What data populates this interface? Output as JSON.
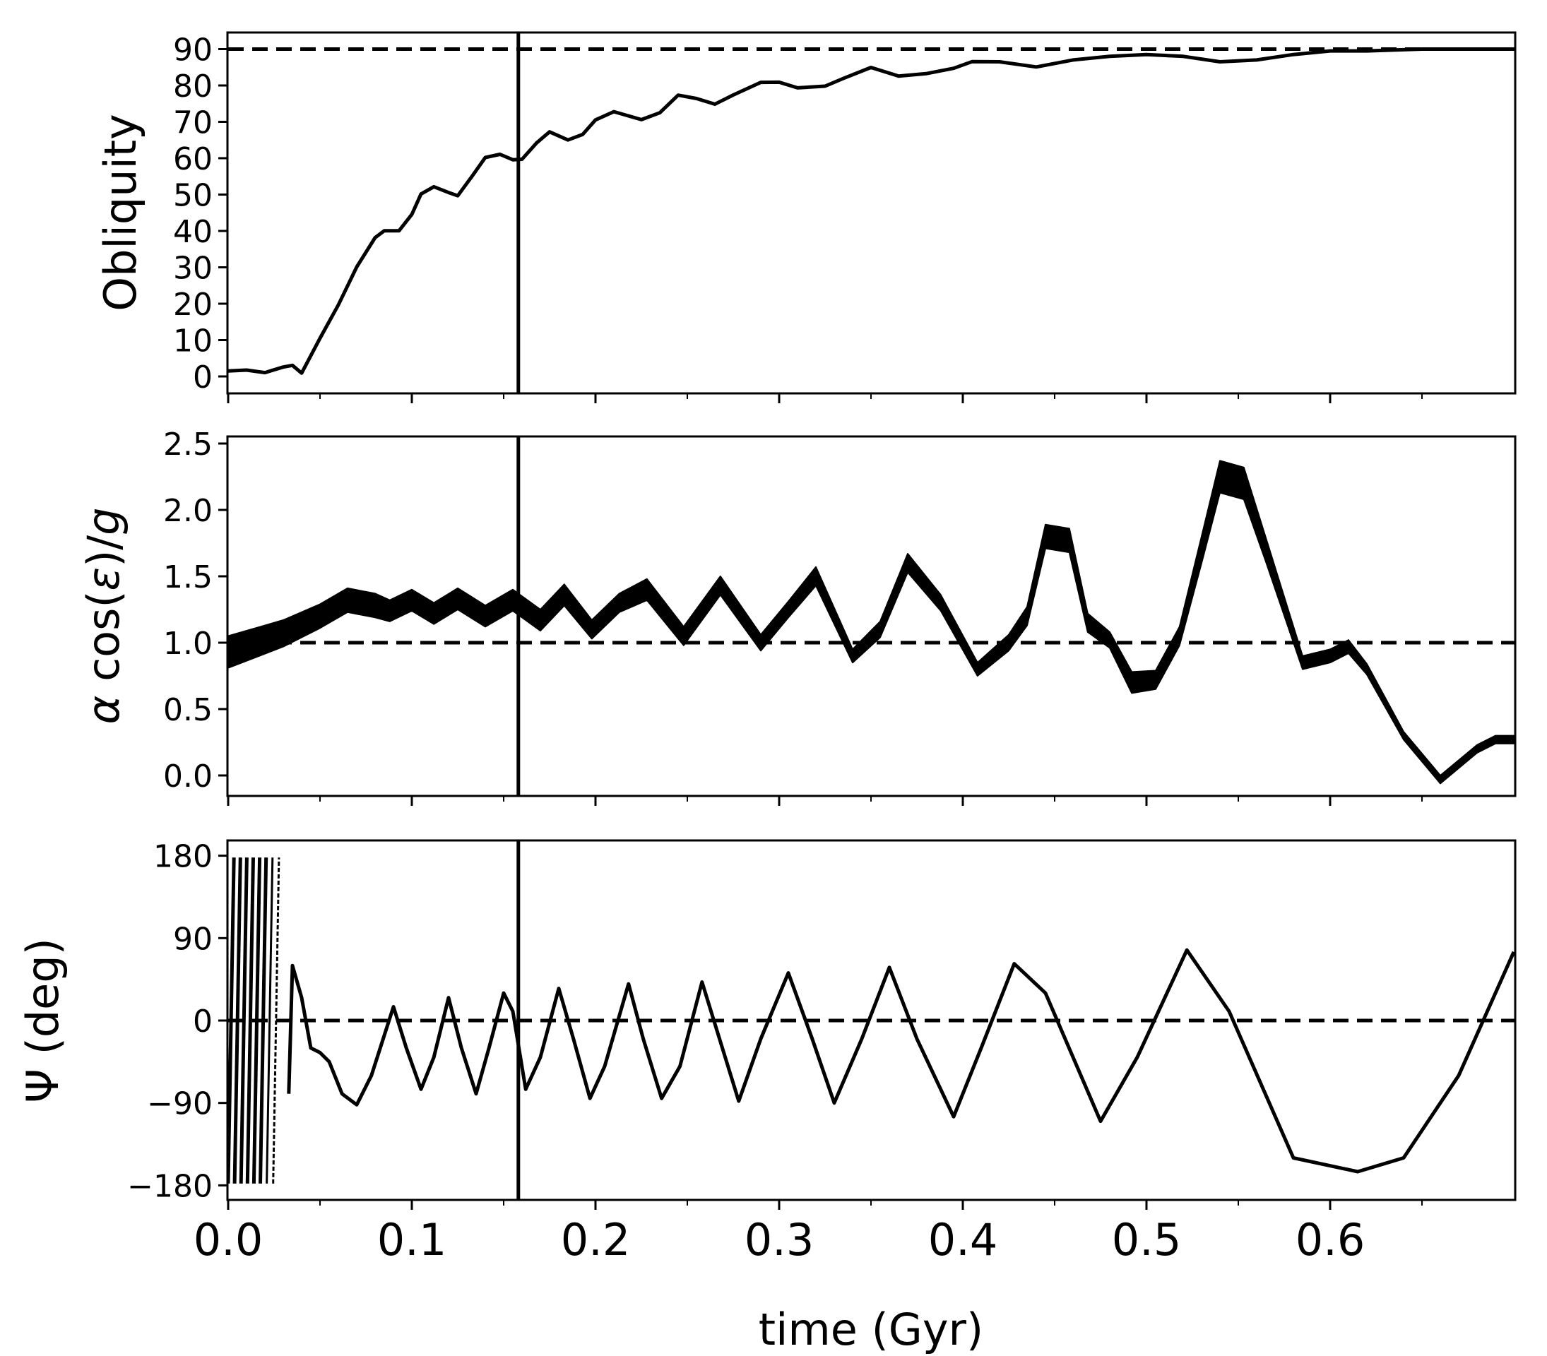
{
  "figure": {
    "xlabel": "time (Gyr)",
    "xticks": [
      "0.0",
      "0.1",
      "0.2",
      "0.3",
      "0.4",
      "0.5",
      "0.6"
    ],
    "vertical_marker_time": 0.158
  },
  "panels": [
    {
      "ylabel": "Obliquity",
      "yticks": [
        "0",
        "10",
        "20",
        "30",
        "40",
        "50",
        "60",
        "70",
        "80",
        "90"
      ],
      "reference_line": 90
    },
    {
      "ylabel_prefix": "α",
      "ylabel_mid": " cos(",
      "ylabel_eps": "ε",
      "ylabel_close": ")/",
      "ylabel_g": "g",
      "yticks": [
        "0.0",
        "0.5",
        "1.0",
        "1.5",
        "2.0",
        "2.5"
      ],
      "reference_line": 1.0
    },
    {
      "ylabel": "Ψ (deg)",
      "yticks": [
        "−180",
        "−90",
        "0",
        "90",
        "180"
      ],
      "reference_line": 0
    }
  ],
  "chart_data": [
    {
      "type": "line",
      "title": "",
      "xlabel": "",
      "ylabel": "Obliquity",
      "xlim": [
        0.0,
        0.7
      ],
      "ylim": [
        -4,
        94
      ],
      "grid": false,
      "reference_lines": [
        {
          "axis": "y",
          "value": 90,
          "style": "dashed"
        },
        {
          "axis": "x",
          "value": 0.158,
          "style": "solid"
        }
      ],
      "x": [
        0.0,
        0.01,
        0.02,
        0.03,
        0.035,
        0.04,
        0.05,
        0.06,
        0.07,
        0.08,
        0.085,
        0.093,
        0.1,
        0.105,
        0.112,
        0.12,
        0.125,
        0.133,
        0.14,
        0.148,
        0.155,
        0.16,
        0.168,
        0.175,
        0.185,
        0.193,
        0.2,
        0.21,
        0.225,
        0.235,
        0.245,
        0.255,
        0.265,
        0.275,
        0.29,
        0.3,
        0.31,
        0.325,
        0.335,
        0.35,
        0.365,
        0.38,
        0.395,
        0.405,
        0.42,
        0.44,
        0.46,
        0.48,
        0.5,
        0.52,
        0.54,
        0.56,
        0.58,
        0.6,
        0.62,
        0.65,
        0.7
      ],
      "series": [
        {
          "name": "obliquity",
          "values": [
            1.5,
            1.5,
            1.5,
            2.0,
            3.0,
            1.5,
            10,
            20,
            30,
            38,
            39.5,
            39.5,
            44,
            50,
            52,
            50,
            50,
            55,
            60,
            60.5,
            59,
            60,
            64,
            67,
            65,
            67,
            71,
            72.5,
            70,
            73,
            77,
            76.5,
            75,
            77,
            81,
            81,
            79,
            80,
            82,
            84.5,
            82,
            83,
            85,
            86.5,
            86,
            85,
            87,
            88,
            88.5,
            88,
            86.5,
            87,
            88.5,
            89.5,
            89.5,
            90,
            90
          ]
        }
      ]
    },
    {
      "type": "line",
      "title": "",
      "xlabel": "",
      "ylabel": "α cos(ε)/g",
      "xlim": [
        0.0,
        0.7
      ],
      "ylim": [
        -0.15,
        2.6
      ],
      "grid": false,
      "reference_lines": [
        {
          "axis": "y",
          "value": 1.0,
          "style": "dashed"
        },
        {
          "axis": "x",
          "value": 0.158,
          "style": "solid"
        }
      ],
      "x": [
        0.0,
        0.015,
        0.03,
        0.05,
        0.065,
        0.08,
        0.088,
        0.1,
        0.112,
        0.125,
        0.14,
        0.155,
        0.17,
        0.183,
        0.198,
        0.213,
        0.228,
        0.248,
        0.268,
        0.29,
        0.305,
        0.32,
        0.34,
        0.355,
        0.37,
        0.388,
        0.408,
        0.425,
        0.435,
        0.445,
        0.458,
        0.468,
        0.48,
        0.492,
        0.505,
        0.518,
        0.53,
        0.54,
        0.553,
        0.565,
        0.585,
        0.6,
        0.61,
        0.62,
        0.64,
        0.66,
        0.68,
        0.69,
        0.7
      ],
      "series": [
        {
          "name": "center",
          "values": [
            0.93,
            1.0,
            1.07,
            1.2,
            1.32,
            1.28,
            1.24,
            1.32,
            1.22,
            1.33,
            1.2,
            1.32,
            1.17,
            1.36,
            1.1,
            1.3,
            1.4,
            1.05,
            1.43,
            1.0,
            1.25,
            1.5,
            0.9,
            1.1,
            1.6,
            1.3,
            0.8,
            1.0,
            1.2,
            1.8,
            1.77,
            1.15,
            1.02,
            0.7,
            0.72,
            1.05,
            1.7,
            2.25,
            2.2,
            1.7,
            0.85,
            0.9,
            0.97,
            0.8,
            0.3,
            -0.03,
            0.2,
            0.27,
            0.27
          ]
        },
        {
          "name": "band_halfwidth",
          "values": [
            0.1,
            0.09,
            0.08,
            0.07,
            0.07,
            0.07,
            0.06,
            0.06,
            0.06,
            0.06,
            0.06,
            0.06,
            0.06,
            0.06,
            0.05,
            0.05,
            0.06,
            0.05,
            0.05,
            0.04,
            0.04,
            0.05,
            0.03,
            0.04,
            0.05,
            0.04,
            0.03,
            0.04,
            0.05,
            0.07,
            0.07,
            0.05,
            0.04,
            0.06,
            0.05,
            0.05,
            0.08,
            0.1,
            0.1,
            0.07,
            0.03,
            0.03,
            0.03,
            0.02,
            0.01,
            0.01,
            0.01,
            0.01,
            0.01
          ]
        }
      ]
    },
    {
      "type": "line",
      "title": "",
      "xlabel": "time (Gyr)",
      "ylabel": "Ψ (deg)",
      "xlim": [
        0.0,
        0.7
      ],
      "ylim": [
        -190,
        192
      ],
      "grid": false,
      "reference_lines": [
        {
          "axis": "y",
          "value": 0,
          "style": "dashed"
        },
        {
          "axis": "x",
          "value": 0.158,
          "style": "solid"
        }
      ],
      "early_circulation": {
        "x_start": 0.0,
        "x_end": 0.028,
        "wraps": 8,
        "range": [
          -180,
          180
        ]
      },
      "x": [
        0.033,
        0.035,
        0.04,
        0.045,
        0.05,
        0.055,
        0.062,
        0.07,
        0.078,
        0.09,
        0.097,
        0.105,
        0.112,
        0.12,
        0.127,
        0.135,
        0.142,
        0.15,
        0.155,
        0.162,
        0.17,
        0.18,
        0.188,
        0.197,
        0.205,
        0.218,
        0.226,
        0.236,
        0.246,
        0.258,
        0.266,
        0.278,
        0.29,
        0.305,
        0.318,
        0.33,
        0.345,
        0.36,
        0.375,
        0.395,
        0.41,
        0.428,
        0.445,
        0.475,
        0.495,
        0.522,
        0.545,
        0.58,
        0.615,
        0.64,
        0.67,
        0.7
      ],
      "series": [
        {
          "name": "psi",
          "values": [
            -80,
            60,
            25,
            -30,
            -35,
            -45,
            -80,
            -92,
            -60,
            15,
            -30,
            -75,
            -40,
            25,
            -30,
            -80,
            -30,
            30,
            10,
            -75,
            -40,
            35,
            -20,
            -85,
            -50,
            40,
            -20,
            -85,
            -50,
            42,
            -10,
            -88,
            -20,
            52,
            -20,
            -90,
            -20,
            58,
            -20,
            -105,
            -30,
            62,
            30,
            -110,
            -40,
            77,
            10,
            -150,
            -165,
            -150,
            -60,
            75
          ]
        }
      ]
    }
  ]
}
